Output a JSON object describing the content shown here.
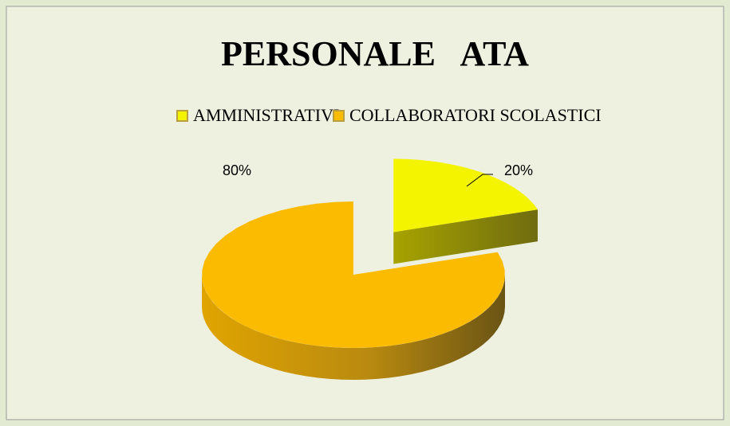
{
  "chart_data": {
    "type": "pie",
    "title": "PERSONALE   ATA",
    "categories": [
      "AMMINISTRATIVI",
      "COLLABORATORI SCOLASTICI"
    ],
    "values": [
      20,
      80
    ],
    "value_labels": [
      "20%",
      "80%"
    ],
    "colors": [
      "#f4f400",
      "#fbbb00"
    ],
    "legend": "top"
  }
}
